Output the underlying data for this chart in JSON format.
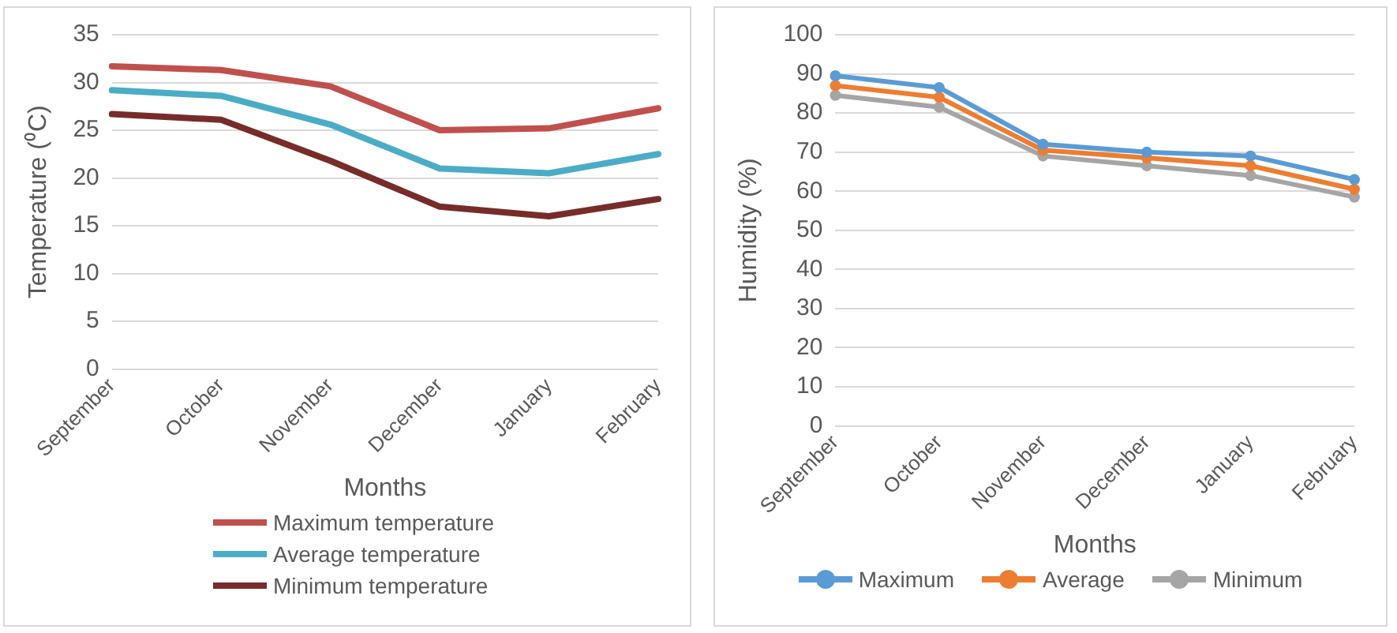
{
  "chart_data": [
    {
      "type": "line",
      "xlabel": "Months",
      "ylabel": "Temperature (⁰C)",
      "categories": [
        "September",
        "October",
        "November",
        "December",
        "January",
        "February"
      ],
      "series": [
        {
          "name": "Maximum temperature",
          "color": "#c0504d",
          "values": [
            31.7,
            31.3,
            29.6,
            25,
            25.2,
            27.3
          ]
        },
        {
          "name": "Average temperature",
          "color": "#4bacc6",
          "values": [
            29.2,
            28.6,
            25.6,
            21,
            20.5,
            22.5
          ]
        },
        {
          "name": "Minimum temperature",
          "color": "#772c2a",
          "values": [
            26.7,
            26.1,
            21.8,
            17,
            16,
            17.8
          ]
        }
      ],
      "ylim": [
        0,
        35
      ],
      "yticks": [
        0,
        5,
        10,
        15,
        20,
        25,
        30,
        35
      ],
      "grid": "y",
      "legend": "bottom",
      "marker": "none"
    },
    {
      "type": "line",
      "xlabel": "Months",
      "ylabel": "Humidity (%)",
      "categories": [
        "September",
        "October",
        "November",
        "December",
        "January",
        "February"
      ],
      "series": [
        {
          "name": "Maximum",
          "color": "#5b9bd5",
          "values": [
            89.5,
            86.5,
            72,
            70,
            69,
            63
          ]
        },
        {
          "name": "Average",
          "color": "#ed7d31",
          "values": [
            87,
            84,
            70.5,
            68.5,
            66.5,
            60.5
          ]
        },
        {
          "name": "Minimum",
          "color": "#a5a5a5",
          "values": [
            84.5,
            81.5,
            69,
            66.5,
            64,
            58.5
          ]
        }
      ],
      "ylim": [
        0,
        100
      ],
      "yticks": [
        0,
        10,
        20,
        30,
        40,
        50,
        60,
        70,
        80,
        90,
        100
      ],
      "grid": "y",
      "legend": "bottom",
      "marker": "circle"
    }
  ]
}
